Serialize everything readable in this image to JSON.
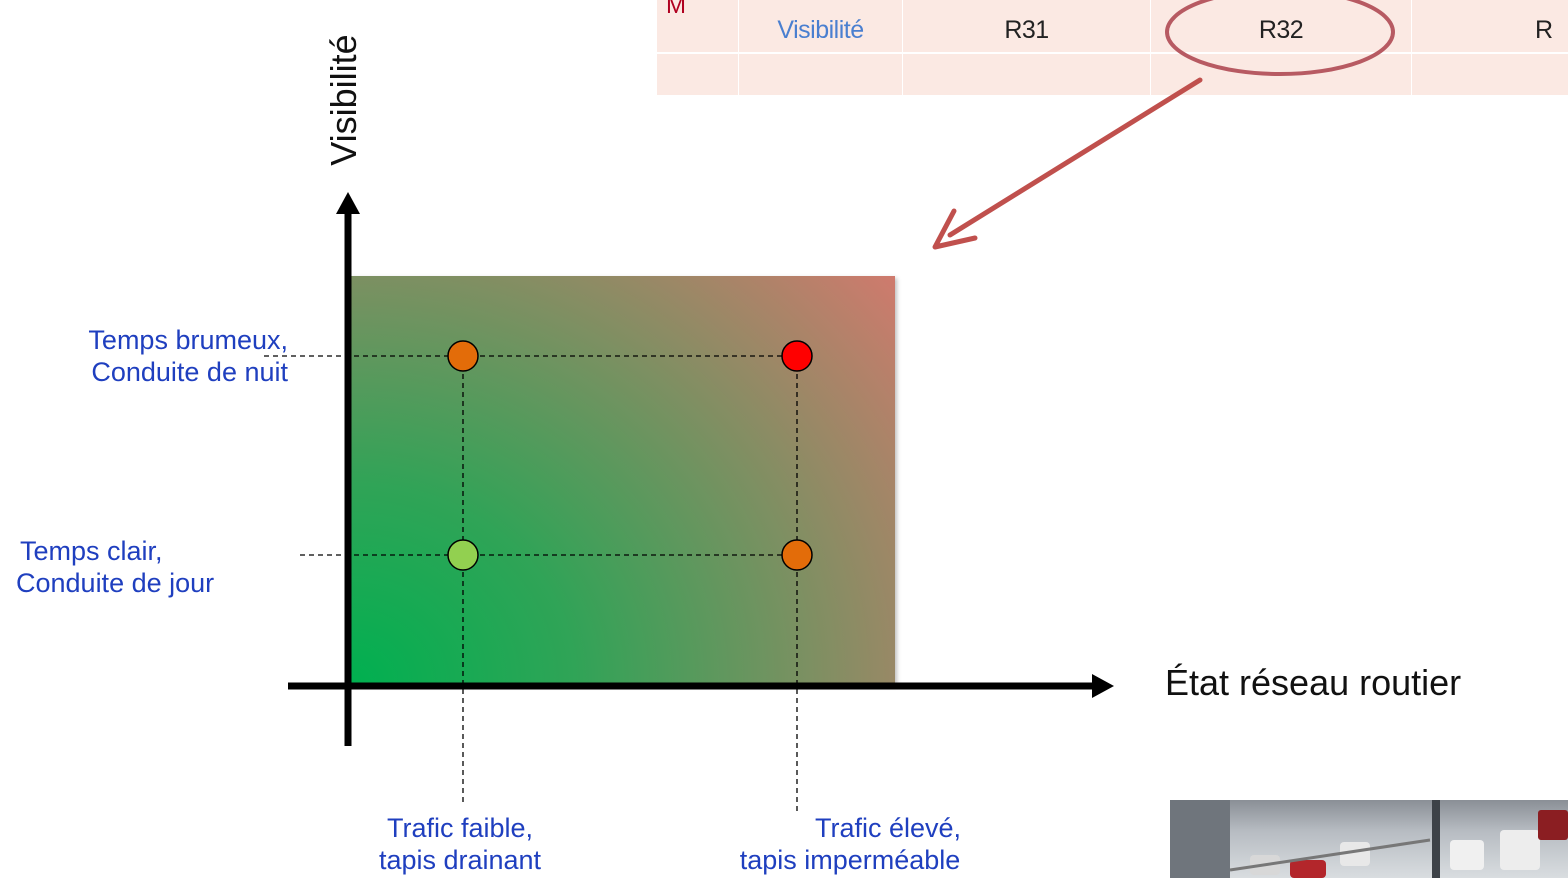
{
  "table": {
    "corner_mark": "M",
    "row_label": "Visibilité",
    "cells": [
      "R31",
      "R32",
      "R"
    ]
  },
  "axes": {
    "y_title": "Visibilité",
    "x_title": "État réseau routier"
  },
  "y_levels": [
    {
      "line1": "Temps brumeux,",
      "line2": "Conduite de nuit"
    },
    {
      "line1": "Temps clair,",
      "line2": "Conduite de jour"
    }
  ],
  "x_levels": [
    {
      "line1": "Trafic faible,",
      "line2": "tapis drainant"
    },
    {
      "line1": "Trafic élevé,",
      "line2": "tapis imperméable"
    }
  ],
  "points": [
    {
      "x": "Trafic faible",
      "y": "Temps brumeux",
      "color": "#e36c09"
    },
    {
      "x": "Trafic élevé",
      "y": "Temps brumeux",
      "color": "#ff0000"
    },
    {
      "x": "Trafic faible",
      "y": "Temps clair",
      "color": "#92d050"
    },
    {
      "x": "Trafic élevé",
      "y": "Temps clair",
      "color": "#e36c09"
    }
  ],
  "colors": {
    "low_risk": "#00b050",
    "high_risk": "#ef7272",
    "arrow": "#c0504d",
    "label_blue": "#1f3fbf"
  },
  "photo_icon": "road-traffic-snow-photo"
}
